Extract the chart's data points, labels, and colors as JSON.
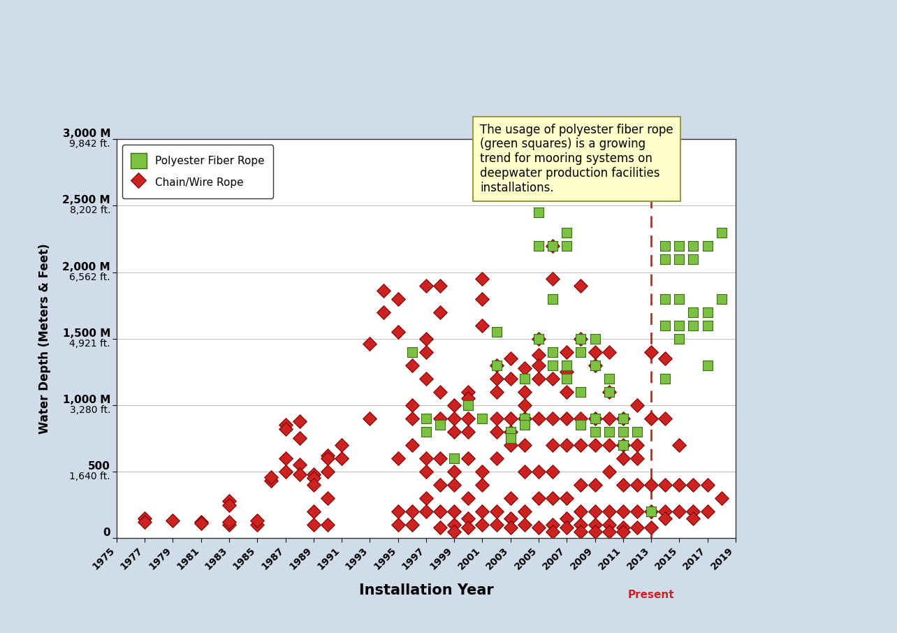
{
  "chain_wire": [
    [
      1977,
      150
    ],
    [
      1977,
      120
    ],
    [
      1979,
      130
    ],
    [
      1981,
      120
    ],
    [
      1981,
      110
    ],
    [
      1983,
      100
    ],
    [
      1983,
      120
    ],
    [
      1983,
      280
    ],
    [
      1983,
      250
    ],
    [
      1985,
      100
    ],
    [
      1985,
      130
    ],
    [
      1986,
      430
    ],
    [
      1986,
      460
    ],
    [
      1987,
      850
    ],
    [
      1987,
      820
    ],
    [
      1987,
      600
    ],
    [
      1987,
      500
    ],
    [
      1988,
      880
    ],
    [
      1988,
      750
    ],
    [
      1988,
      550
    ],
    [
      1988,
      480
    ],
    [
      1989,
      480
    ],
    [
      1989,
      450
    ],
    [
      1989,
      400
    ],
    [
      1989,
      200
    ],
    [
      1989,
      100
    ],
    [
      1990,
      620
    ],
    [
      1990,
      600
    ],
    [
      1990,
      500
    ],
    [
      1990,
      300
    ],
    [
      1990,
      100
    ],
    [
      1991,
      700
    ],
    [
      1991,
      600
    ],
    [
      1993,
      1460
    ],
    [
      1993,
      900
    ],
    [
      1994,
      1860
    ],
    [
      1994,
      1700
    ],
    [
      1995,
      1800
    ],
    [
      1995,
      1550
    ],
    [
      1995,
      600
    ],
    [
      1995,
      200
    ],
    [
      1995,
      100
    ],
    [
      1996,
      1300
    ],
    [
      1996,
      1000
    ],
    [
      1996,
      900
    ],
    [
      1996,
      700
    ],
    [
      1996,
      200
    ],
    [
      1996,
      100
    ],
    [
      1997,
      1900
    ],
    [
      1997,
      1500
    ],
    [
      1997,
      1400
    ],
    [
      1997,
      1200
    ],
    [
      1997,
      600
    ],
    [
      1997,
      500
    ],
    [
      1997,
      300
    ],
    [
      1997,
      200
    ],
    [
      1998,
      1900
    ],
    [
      1998,
      1700
    ],
    [
      1998,
      1100
    ],
    [
      1998,
      900
    ],
    [
      1998,
      600
    ],
    [
      1998,
      400
    ],
    [
      1998,
      200
    ],
    [
      1998,
      80
    ],
    [
      1999,
      1000
    ],
    [
      1999,
      900
    ],
    [
      1999,
      800
    ],
    [
      1999,
      500
    ],
    [
      1999,
      400
    ],
    [
      1999,
      200
    ],
    [
      1999,
      100
    ],
    [
      1999,
      50
    ],
    [
      2000,
      1100
    ],
    [
      2000,
      1050
    ],
    [
      2000,
      900
    ],
    [
      2000,
      800
    ],
    [
      2000,
      600
    ],
    [
      2000,
      300
    ],
    [
      2000,
      150
    ],
    [
      2000,
      80
    ],
    [
      2001,
      1950
    ],
    [
      2001,
      1800
    ],
    [
      2001,
      1600
    ],
    [
      2001,
      500
    ],
    [
      2001,
      400
    ],
    [
      2001,
      200
    ],
    [
      2001,
      100
    ],
    [
      2002,
      1300
    ],
    [
      2002,
      1200
    ],
    [
      2002,
      1100
    ],
    [
      2002,
      900
    ],
    [
      2002,
      800
    ],
    [
      2002,
      600
    ],
    [
      2002,
      200
    ],
    [
      2002,
      100
    ],
    [
      2003,
      1350
    ],
    [
      2003,
      1200
    ],
    [
      2003,
      900
    ],
    [
      2003,
      800
    ],
    [
      2003,
      700
    ],
    [
      2003,
      300
    ],
    [
      2003,
      150
    ],
    [
      2003,
      80
    ],
    [
      2004,
      1280
    ],
    [
      2004,
      1100
    ],
    [
      2004,
      1000
    ],
    [
      2004,
      900
    ],
    [
      2004,
      700
    ],
    [
      2004,
      500
    ],
    [
      2004,
      200
    ],
    [
      2004,
      100
    ],
    [
      2005,
      1500
    ],
    [
      2005,
      1380
    ],
    [
      2005,
      1300
    ],
    [
      2005,
      1200
    ],
    [
      2005,
      900
    ],
    [
      2005,
      500
    ],
    [
      2005,
      300
    ],
    [
      2005,
      80
    ],
    [
      2006,
      2200
    ],
    [
      2006,
      1950
    ],
    [
      2006,
      1200
    ],
    [
      2006,
      900
    ],
    [
      2006,
      700
    ],
    [
      2006,
      500
    ],
    [
      2006,
      300
    ],
    [
      2006,
      100
    ],
    [
      2006,
      50
    ],
    [
      2007,
      1400
    ],
    [
      2007,
      1250
    ],
    [
      2007,
      1100
    ],
    [
      2007,
      900
    ],
    [
      2007,
      700
    ],
    [
      2007,
      300
    ],
    [
      2007,
      150
    ],
    [
      2007,
      80
    ],
    [
      2008,
      1900
    ],
    [
      2008,
      1500
    ],
    [
      2008,
      900
    ],
    [
      2008,
      700
    ],
    [
      2008,
      400
    ],
    [
      2008,
      200
    ],
    [
      2008,
      100
    ],
    [
      2008,
      50
    ],
    [
      2009,
      1400
    ],
    [
      2009,
      1300
    ],
    [
      2009,
      900
    ],
    [
      2009,
      700
    ],
    [
      2009,
      400
    ],
    [
      2009,
      200
    ],
    [
      2009,
      100
    ],
    [
      2009,
      50
    ],
    [
      2010,
      1400
    ],
    [
      2010,
      1100
    ],
    [
      2010,
      900
    ],
    [
      2010,
      700
    ],
    [
      2010,
      500
    ],
    [
      2010,
      200
    ],
    [
      2010,
      100
    ],
    [
      2010,
      50
    ],
    [
      2011,
      900
    ],
    [
      2011,
      700
    ],
    [
      2011,
      600
    ],
    [
      2011,
      400
    ],
    [
      2011,
      200
    ],
    [
      2011,
      80
    ],
    [
      2011,
      50
    ],
    [
      2012,
      1000
    ],
    [
      2012,
      700
    ],
    [
      2012,
      600
    ],
    [
      2012,
      400
    ],
    [
      2012,
      200
    ],
    [
      2012,
      80
    ],
    [
      2013,
      1400
    ],
    [
      2013,
      900
    ],
    [
      2013,
      400
    ],
    [
      2013,
      200
    ],
    [
      2013,
      80
    ],
    [
      2014,
      1350
    ],
    [
      2014,
      900
    ],
    [
      2014,
      400
    ],
    [
      2014,
      200
    ],
    [
      2014,
      150
    ],
    [
      2015,
      700
    ],
    [
      2015,
      400
    ],
    [
      2015,
      200
    ],
    [
      2016,
      400
    ],
    [
      2016,
      200
    ],
    [
      2016,
      150
    ],
    [
      2017,
      400
    ],
    [
      2017,
      200
    ],
    [
      2018,
      300
    ]
  ],
  "polyester": [
    [
      1996,
      1400
    ],
    [
      1997,
      900
    ],
    [
      1997,
      800
    ],
    [
      1998,
      850
    ],
    [
      1999,
      600
    ],
    [
      2000,
      1000
    ],
    [
      2001,
      900
    ],
    [
      2002,
      1550
    ],
    [
      2002,
      1300
    ],
    [
      2003,
      800
    ],
    [
      2003,
      750
    ],
    [
      2004,
      1200
    ],
    [
      2004,
      900
    ],
    [
      2004,
      850
    ],
    [
      2005,
      2450
    ],
    [
      2005,
      2200
    ],
    [
      2005,
      1500
    ],
    [
      2006,
      2200
    ],
    [
      2006,
      1800
    ],
    [
      2006,
      1400
    ],
    [
      2006,
      1300
    ],
    [
      2007,
      2300
    ],
    [
      2007,
      2200
    ],
    [
      2007,
      1300
    ],
    [
      2007,
      1200
    ],
    [
      2008,
      1500
    ],
    [
      2008,
      1400
    ],
    [
      2008,
      1100
    ],
    [
      2008,
      850
    ],
    [
      2009,
      1500
    ],
    [
      2009,
      1300
    ],
    [
      2009,
      900
    ],
    [
      2009,
      800
    ],
    [
      2010,
      1200
    ],
    [
      2010,
      1100
    ],
    [
      2010,
      800
    ],
    [
      2011,
      900
    ],
    [
      2011,
      800
    ],
    [
      2011,
      700
    ],
    [
      2012,
      800
    ],
    [
      2013,
      200
    ],
    [
      2014,
      2200
    ],
    [
      2014,
      2100
    ],
    [
      2014,
      1800
    ],
    [
      2014,
      1600
    ],
    [
      2014,
      1200
    ],
    [
      2015,
      2200
    ],
    [
      2015,
      2100
    ],
    [
      2015,
      1800
    ],
    [
      2015,
      1600
    ],
    [
      2015,
      1500
    ],
    [
      2016,
      2200
    ],
    [
      2016,
      2100
    ],
    [
      2016,
      1700
    ],
    [
      2016,
      1600
    ],
    [
      2017,
      2200
    ],
    [
      2017,
      1700
    ],
    [
      2017,
      1600
    ],
    [
      2017,
      1300
    ],
    [
      2018,
      2300
    ],
    [
      2018,
      1800
    ]
  ],
  "ylim": [
    0,
    3000
  ],
  "xlim": [
    1975,
    2019
  ],
  "ytick_positions": [
    0,
    500,
    1000,
    1500,
    2000,
    2500,
    3000
  ],
  "xticks": [
    1975,
    1977,
    1979,
    1981,
    1983,
    1985,
    1987,
    1989,
    1991,
    1993,
    1995,
    1997,
    1999,
    2001,
    2003,
    2005,
    2007,
    2009,
    2011,
    2013,
    2015,
    2017,
    2019
  ],
  "xlabel": "Installation Year",
  "ylabel": "Water Depth (Meters & Feet)",
  "present_line_x": 2013,
  "annotation_text": "The usage of polyester fiber rope\n(green squares) is a growing\ntrend for mooring systems on\ndeepwater production facilities\ninstallations.",
  "polyester_color": "#7dc142",
  "chain_color": "#cc2222",
  "background_color": "#d0dcea",
  "plot_background": "#ffffff",
  "present_color": "#cc2222",
  "grid_color": "#bbbbbb"
}
